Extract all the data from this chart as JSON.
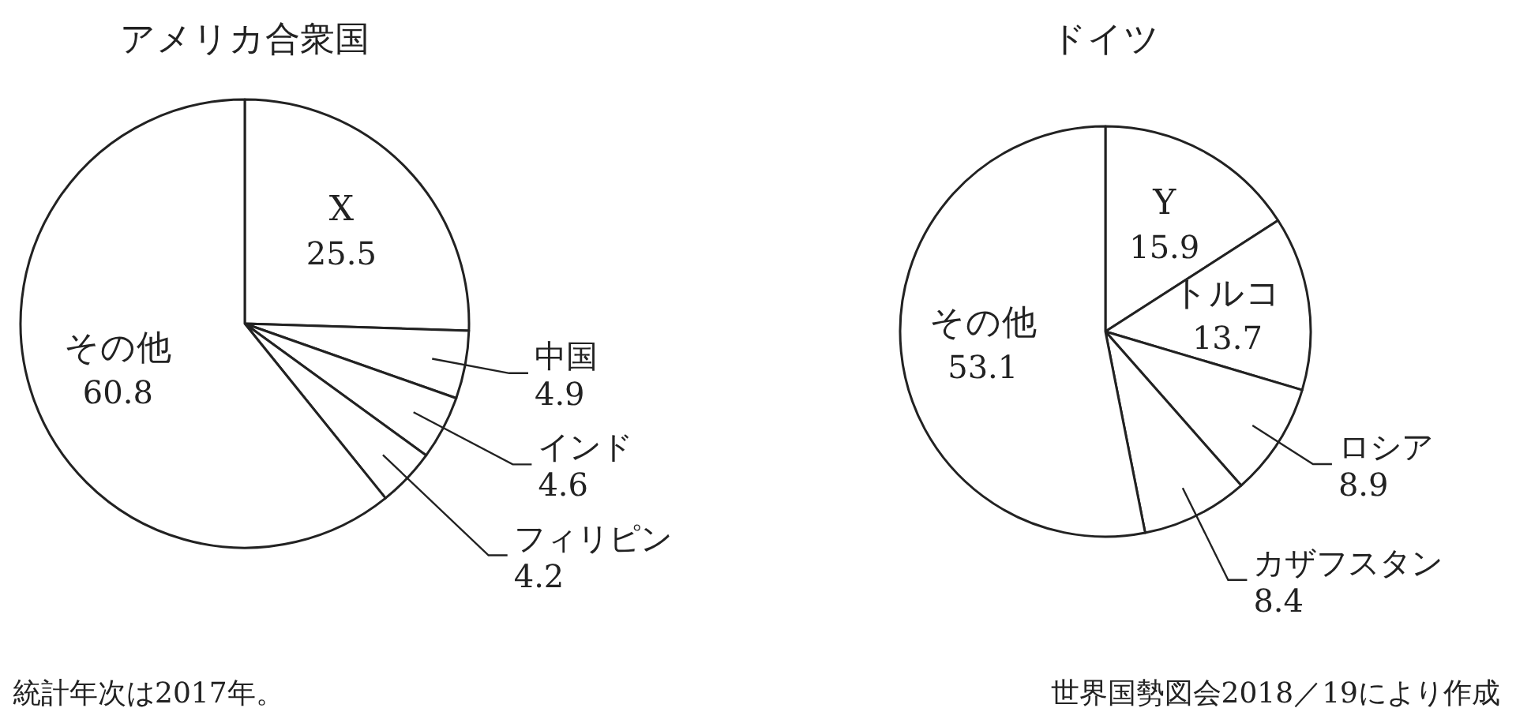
{
  "chart_data": [
    {
      "type": "pie",
      "title": "アメリカ合衆国",
      "categories": [
        "X",
        "中国",
        "インド",
        "フィリピン",
        "その他"
      ],
      "values": [
        25.5,
        4.9,
        4.6,
        4.2,
        60.8
      ],
      "colors": [
        "#ffffff",
        "#ffffff",
        "#ffffff",
        "#ffffff",
        "#ffffff"
      ],
      "data_labels": true,
      "annotations": [
        "統計年次は2017年。"
      ]
    },
    {
      "type": "pie",
      "title": "ドイツ",
      "categories": [
        "Y",
        "トルコ",
        "ロシア",
        "カザフスタン",
        "その他"
      ],
      "values": [
        15.9,
        13.7,
        8.9,
        8.4,
        53.1
      ],
      "colors": [
        "#ffffff",
        "#ffffff",
        "#ffffff",
        "#ffffff",
        "#ffffff"
      ],
      "data_labels": true,
      "annotations": [
        "世界国勢図会2018／19により作成"
      ]
    }
  ]
}
